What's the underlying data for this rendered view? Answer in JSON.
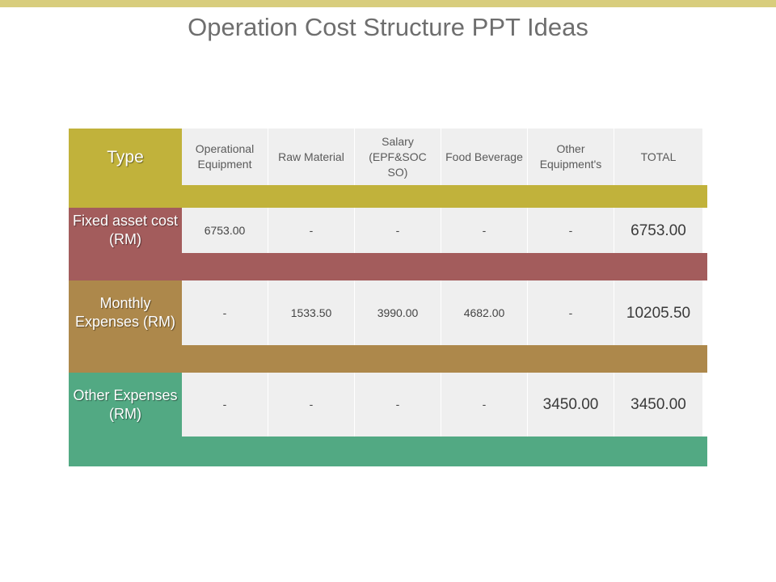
{
  "slide": {
    "title": "Operation Cost Structure PPT Ideas",
    "colors": {
      "top_bar": "#d8cd7d",
      "header": "#c1b23b",
      "fixed": "#a35c5c",
      "monthly": "#ad884b",
      "other": "#52a983",
      "cell": "#efefef"
    }
  },
  "table": {
    "type_label": "Type",
    "columns": [
      "Operational Equipment",
      "Raw Material",
      "Salary (EPF&SOC SO)",
      "Food Beverage",
      "Other Equipment's",
      "TOTAL"
    ],
    "rows": [
      {
        "label": "Fixed asset cost (RM)",
        "values": [
          "6753.00",
          "-",
          "-",
          "-",
          "-",
          "6753.00"
        ]
      },
      {
        "label": "Monthly Expenses (RM)",
        "values": [
          "-",
          "1533.50",
          "3990.00",
          "4682.00",
          "-",
          "10205.50"
        ]
      },
      {
        "label": "Other Expenses (RM)",
        "values": [
          "-",
          "-",
          "-",
          "-",
          "3450.00",
          "3450.00"
        ]
      }
    ]
  }
}
